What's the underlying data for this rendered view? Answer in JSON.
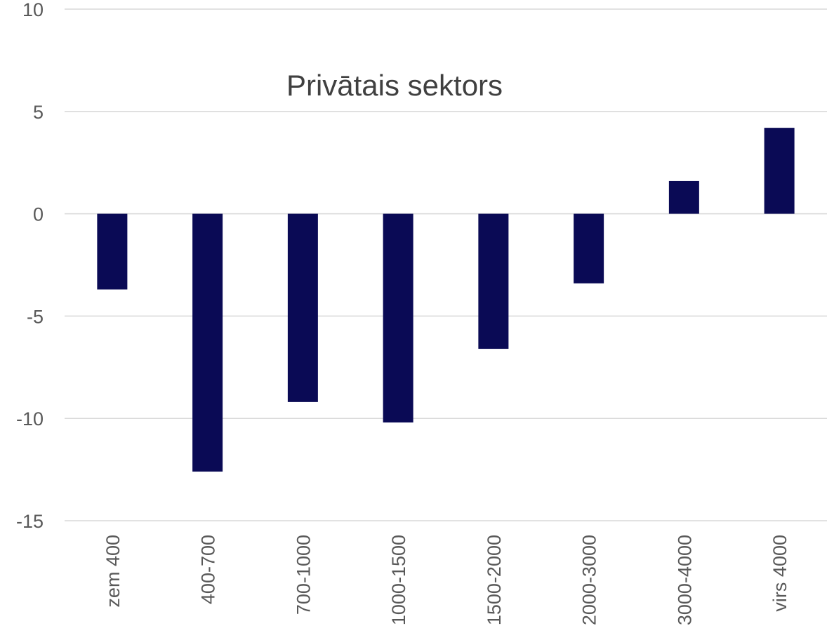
{
  "chart_data": {
    "type": "bar",
    "title": "Privātais sektors",
    "categories": [
      "zem 400",
      "400-700",
      "700-1000",
      "1000-1500",
      "1500-2000",
      "2000-3000",
      "3000-4000",
      "virs 4000"
    ],
    "values": [
      -3.7,
      -12.6,
      -9.2,
      -10.2,
      -6.6,
      -3.4,
      1.6,
      4.2
    ],
    "ylim": [
      -15,
      10
    ],
    "yticks": [
      10,
      5,
      0,
      -5,
      -10,
      -15
    ],
    "grid": true,
    "bar_color": "#0a0a55",
    "grid_color": "#d9d9d9"
  }
}
